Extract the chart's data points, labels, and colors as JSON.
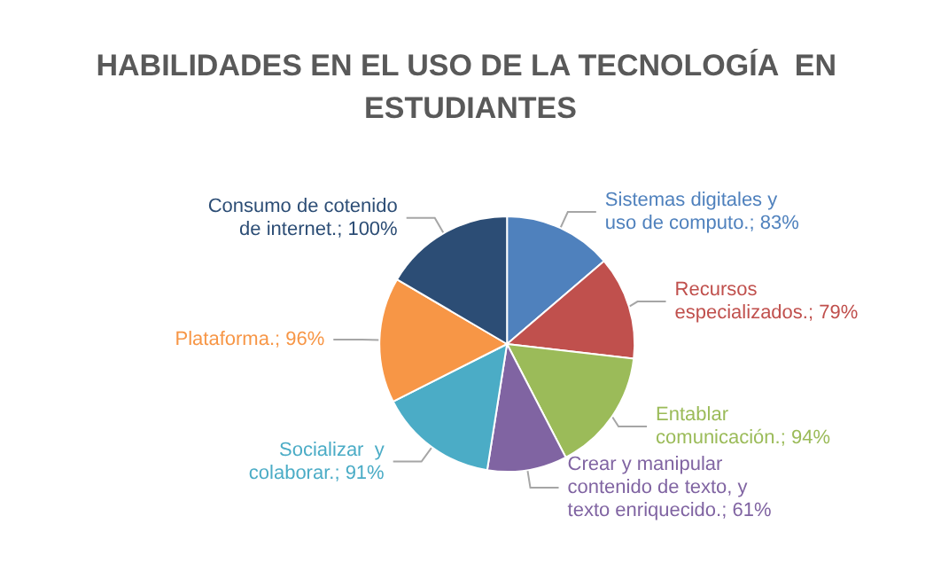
{
  "chart_data": {
    "type": "pie",
    "title": "HABILIDADES EN EL USO DE LA TECNOLOGÍA  EN ESTUDIANTES",
    "categories": [
      "Sistemas digitales y uso de computo.",
      "Recursos especializados.",
      "Entablar comunicación.",
      "Crear y manipular contenido de texto, y texto enriquecido.",
      "Socializar  y colaborar.",
      "Plataforma.",
      "Consumo de cotenido de internet."
    ],
    "values": [
      83,
      79,
      94,
      61,
      91,
      96,
      100
    ],
    "value_labels": [
      "83%",
      "79%",
      "94%",
      "61%",
      "91%",
      "96%",
      "100%"
    ],
    "colors": [
      "#4f81bd",
      "#c0504d",
      "#9bbb59",
      "#8064a2",
      "#4bacc6",
      "#f79646",
      "#2c4d75"
    ],
    "legend": false
  }
}
